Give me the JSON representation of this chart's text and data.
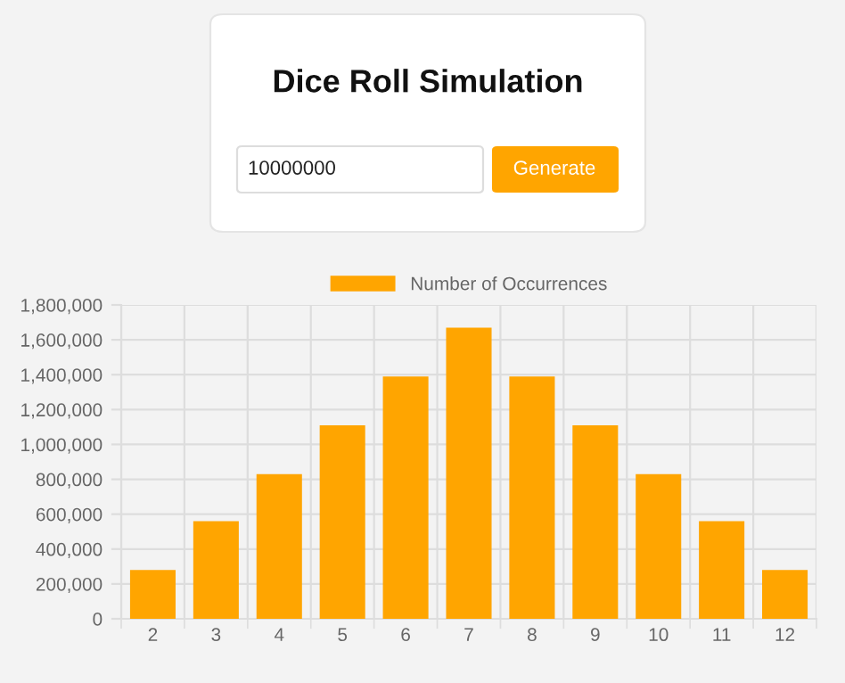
{
  "chart_data": {
    "type": "bar",
    "title": "Dice Roll Simulation",
    "annotations": [
      "10000000",
      "Generate"
    ],
    "categories": [
      "2",
      "3",
      "4",
      "5",
      "6",
      "7",
      "8",
      "9",
      "10",
      "11",
      "12"
    ],
    "series": [
      {
        "name": "Number of Occurrences",
        "color": "#ffa500",
        "values": [
          280000,
          560000,
          830000,
          1110000,
          1390000,
          1670000,
          1390000,
          1110000,
          830000,
          560000,
          280000
        ]
      }
    ],
    "ylim": [
      0,
      1800000
    ],
    "yticks": [
      {
        "value": 0,
        "label": "0"
      },
      {
        "value": 200000,
        "label": "200,000"
      },
      {
        "value": 400000,
        "label": "400,000"
      },
      {
        "value": 600000,
        "label": "600,000"
      },
      {
        "value": 800000,
        "label": "800,000"
      },
      {
        "value": 1000000,
        "label": "1,000,000"
      },
      {
        "value": 1200000,
        "label": "1,200,000"
      },
      {
        "value": 1400000,
        "label": "1,400,000"
      },
      {
        "value": 1600000,
        "label": "1,600,000"
      },
      {
        "value": 1800000,
        "label": "1,800,000"
      }
    ],
    "grid": true,
    "legend": "top"
  }
}
